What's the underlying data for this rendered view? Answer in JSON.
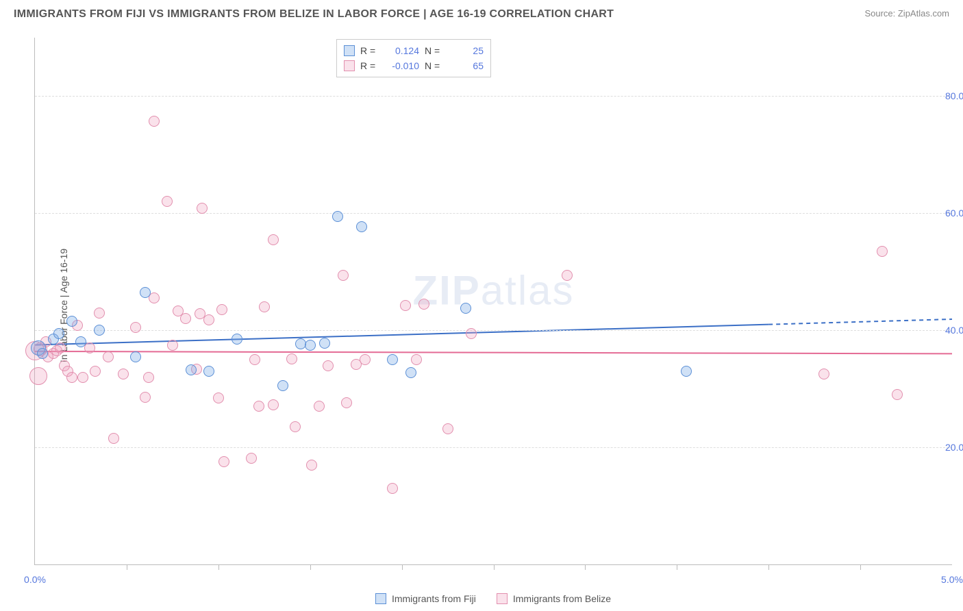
{
  "title": "IMMIGRANTS FROM FIJI VS IMMIGRANTS FROM BELIZE IN LABOR FORCE | AGE 16-19 CORRELATION CHART",
  "source": "Source: ZipAtlas.com",
  "ylabel": "In Labor Force | Age 16-19",
  "watermark": {
    "bold": "ZIP",
    "rest": "atlas"
  },
  "chart": {
    "type": "scatter",
    "xlim": [
      0.0,
      5.0
    ],
    "ylim": [
      0.0,
      90.0
    ],
    "xticks": [
      0.0,
      5.0
    ],
    "xtick_labels": [
      "0.0%",
      "5.0%"
    ],
    "xtick_minor": [
      0.5,
      1.0,
      1.5,
      2.0,
      2.5,
      3.0,
      3.5,
      4.0,
      4.5
    ],
    "yticks": [
      20.0,
      40.0,
      60.0,
      80.0
    ],
    "ytick_labels": [
      "20.0%",
      "40.0%",
      "60.0%",
      "80.0%"
    ],
    "grid_color": "#dddddd",
    "background_color": "#ffffff",
    "ylabel_fontsize": 14,
    "tick_fontsize": 14,
    "tick_color": "#5577dd"
  },
  "series": {
    "fiji": {
      "label": "Immigrants from Fiji",
      "color_fill": "rgba(120,170,230,0.35)",
      "color_stroke": "#5b8fd6",
      "marker_radius": 8,
      "trend_color": "#3b6fc6",
      "trend_width": 2,
      "R": "0.124",
      "N": "25",
      "trend": {
        "x1": 0.0,
        "y1": 37.5,
        "x2": 4.0,
        "y2": 41.0,
        "x3": 5.0,
        "y3": 41.9
      },
      "points": [
        {
          "x": 0.02,
          "y": 37.0,
          "r": 11
        },
        {
          "x": 0.04,
          "y": 36.0,
          "r": 8
        },
        {
          "x": 0.1,
          "y": 38.5,
          "r": 8
        },
        {
          "x": 0.13,
          "y": 39.5,
          "r": 8
        },
        {
          "x": 0.2,
          "y": 41.5,
          "r": 8
        },
        {
          "x": 0.25,
          "y": 38.0,
          "r": 8
        },
        {
          "x": 0.35,
          "y": 40.0,
          "r": 8
        },
        {
          "x": 0.55,
          "y": 35.5,
          "r": 8
        },
        {
          "x": 0.6,
          "y": 46.5,
          "r": 8
        },
        {
          "x": 0.85,
          "y": 33.2,
          "r": 8
        },
        {
          "x": 0.95,
          "y": 33.0,
          "r": 8
        },
        {
          "x": 1.1,
          "y": 38.5,
          "r": 8
        },
        {
          "x": 1.35,
          "y": 30.5,
          "r": 8
        },
        {
          "x": 1.45,
          "y": 37.7,
          "r": 8
        },
        {
          "x": 1.5,
          "y": 37.5,
          "r": 8
        },
        {
          "x": 1.58,
          "y": 37.8,
          "r": 8
        },
        {
          "x": 1.65,
          "y": 59.4,
          "r": 8
        },
        {
          "x": 1.78,
          "y": 57.7,
          "r": 8
        },
        {
          "x": 1.95,
          "y": 35.0,
          "r": 8
        },
        {
          "x": 2.05,
          "y": 32.8,
          "r": 8
        },
        {
          "x": 2.35,
          "y": 43.8,
          "r": 8
        },
        {
          "x": 3.55,
          "y": 33.0,
          "r": 8
        }
      ]
    },
    "belize": {
      "label": "Immigrants from Belize",
      "color_fill": "rgba(240,160,190,0.30)",
      "color_stroke": "#e28fae",
      "marker_radius": 8,
      "trend_color": "#e46a94",
      "trend_width": 2,
      "R": "-0.010",
      "N": "65",
      "trend": {
        "x1": 0.0,
        "y1": 36.4,
        "x2": 5.0,
        "y2": 36.0
      },
      "points": [
        {
          "x": 0.0,
          "y": 36.5,
          "r": 14
        },
        {
          "x": 0.02,
          "y": 32.2,
          "r": 13
        },
        {
          "x": 0.03,
          "y": 36.8,
          "r": 10
        },
        {
          "x": 0.06,
          "y": 38.0,
          "r": 8
        },
        {
          "x": 0.07,
          "y": 35.5,
          "r": 8
        },
        {
          "x": 0.1,
          "y": 36.0,
          "r": 8
        },
        {
          "x": 0.12,
          "y": 36.5,
          "r": 8
        },
        {
          "x": 0.14,
          "y": 37.0,
          "r": 8
        },
        {
          "x": 0.16,
          "y": 34.0,
          "r": 8
        },
        {
          "x": 0.18,
          "y": 33.0,
          "r": 8
        },
        {
          "x": 0.2,
          "y": 32.0,
          "r": 8
        },
        {
          "x": 0.23,
          "y": 40.8,
          "r": 8
        },
        {
          "x": 0.26,
          "y": 32.0,
          "r": 8
        },
        {
          "x": 0.3,
          "y": 37.0,
          "r": 8
        },
        {
          "x": 0.33,
          "y": 33.0,
          "r": 8
        },
        {
          "x": 0.35,
          "y": 43.0,
          "r": 8
        },
        {
          "x": 0.4,
          "y": 35.5,
          "r": 8
        },
        {
          "x": 0.43,
          "y": 21.5,
          "r": 8
        },
        {
          "x": 0.48,
          "y": 32.5,
          "r": 8
        },
        {
          "x": 0.55,
          "y": 40.5,
          "r": 8
        },
        {
          "x": 0.6,
          "y": 28.5,
          "r": 8
        },
        {
          "x": 0.62,
          "y": 32.0,
          "r": 8
        },
        {
          "x": 0.65,
          "y": 45.5,
          "r": 8
        },
        {
          "x": 0.65,
          "y": 75.7,
          "r": 8
        },
        {
          "x": 0.72,
          "y": 62.0,
          "r": 8
        },
        {
          "x": 0.75,
          "y": 37.5,
          "r": 8
        },
        {
          "x": 0.78,
          "y": 43.3,
          "r": 8
        },
        {
          "x": 0.82,
          "y": 42.0,
          "r": 8
        },
        {
          "x": 0.88,
          "y": 33.3,
          "r": 8
        },
        {
          "x": 0.9,
          "y": 42.8,
          "r": 8
        },
        {
          "x": 0.91,
          "y": 60.9,
          "r": 8
        },
        {
          "x": 0.95,
          "y": 41.8,
          "r": 8
        },
        {
          "x": 1.0,
          "y": 28.4,
          "r": 8
        },
        {
          "x": 1.02,
          "y": 43.5,
          "r": 8
        },
        {
          "x": 1.03,
          "y": 17.5,
          "r": 8
        },
        {
          "x": 1.18,
          "y": 18.1,
          "r": 8
        },
        {
          "x": 1.2,
          "y": 35.0,
          "r": 8
        },
        {
          "x": 1.22,
          "y": 27.0,
          "r": 8
        },
        {
          "x": 1.25,
          "y": 44.0,
          "r": 8
        },
        {
          "x": 1.3,
          "y": 27.3,
          "r": 8
        },
        {
          "x": 1.3,
          "y": 55.5,
          "r": 8
        },
        {
          "x": 1.4,
          "y": 35.1,
          "r": 8
        },
        {
          "x": 1.42,
          "y": 23.5,
          "r": 8
        },
        {
          "x": 1.51,
          "y": 17.0,
          "r": 8
        },
        {
          "x": 1.55,
          "y": 27.0,
          "r": 8
        },
        {
          "x": 1.6,
          "y": 34.0,
          "r": 8
        },
        {
          "x": 1.68,
          "y": 49.4,
          "r": 8
        },
        {
          "x": 1.7,
          "y": 27.6,
          "r": 8
        },
        {
          "x": 1.75,
          "y": 34.2,
          "r": 8
        },
        {
          "x": 1.8,
          "y": 35.0,
          "r": 8
        },
        {
          "x": 1.95,
          "y": 13.0,
          "r": 8
        },
        {
          "x": 2.02,
          "y": 44.2,
          "r": 8
        },
        {
          "x": 2.08,
          "y": 35.0,
          "r": 8
        },
        {
          "x": 2.12,
          "y": 44.5,
          "r": 8
        },
        {
          "x": 2.25,
          "y": 23.2,
          "r": 8
        },
        {
          "x": 2.38,
          "y": 39.5,
          "r": 8
        },
        {
          "x": 2.9,
          "y": 49.4,
          "r": 8
        },
        {
          "x": 4.3,
          "y": 32.5,
          "r": 8
        },
        {
          "x": 4.62,
          "y": 53.5,
          "r": 8
        },
        {
          "x": 4.7,
          "y": 29.0,
          "r": 8
        }
      ]
    }
  },
  "stats_legend": [
    {
      "series": "fiji",
      "R_label": "R =",
      "R_val": "0.124",
      "N_label": "N =",
      "N_val": "25"
    },
    {
      "series": "belize",
      "R_label": "R =",
      "R_val": "-0.010",
      "N_label": "N =",
      "N_val": "65"
    }
  ],
  "bottom_legend": [
    {
      "series": "fiji",
      "label": "Immigrants from Fiji"
    },
    {
      "series": "belize",
      "label": "Immigrants from Belize"
    }
  ]
}
